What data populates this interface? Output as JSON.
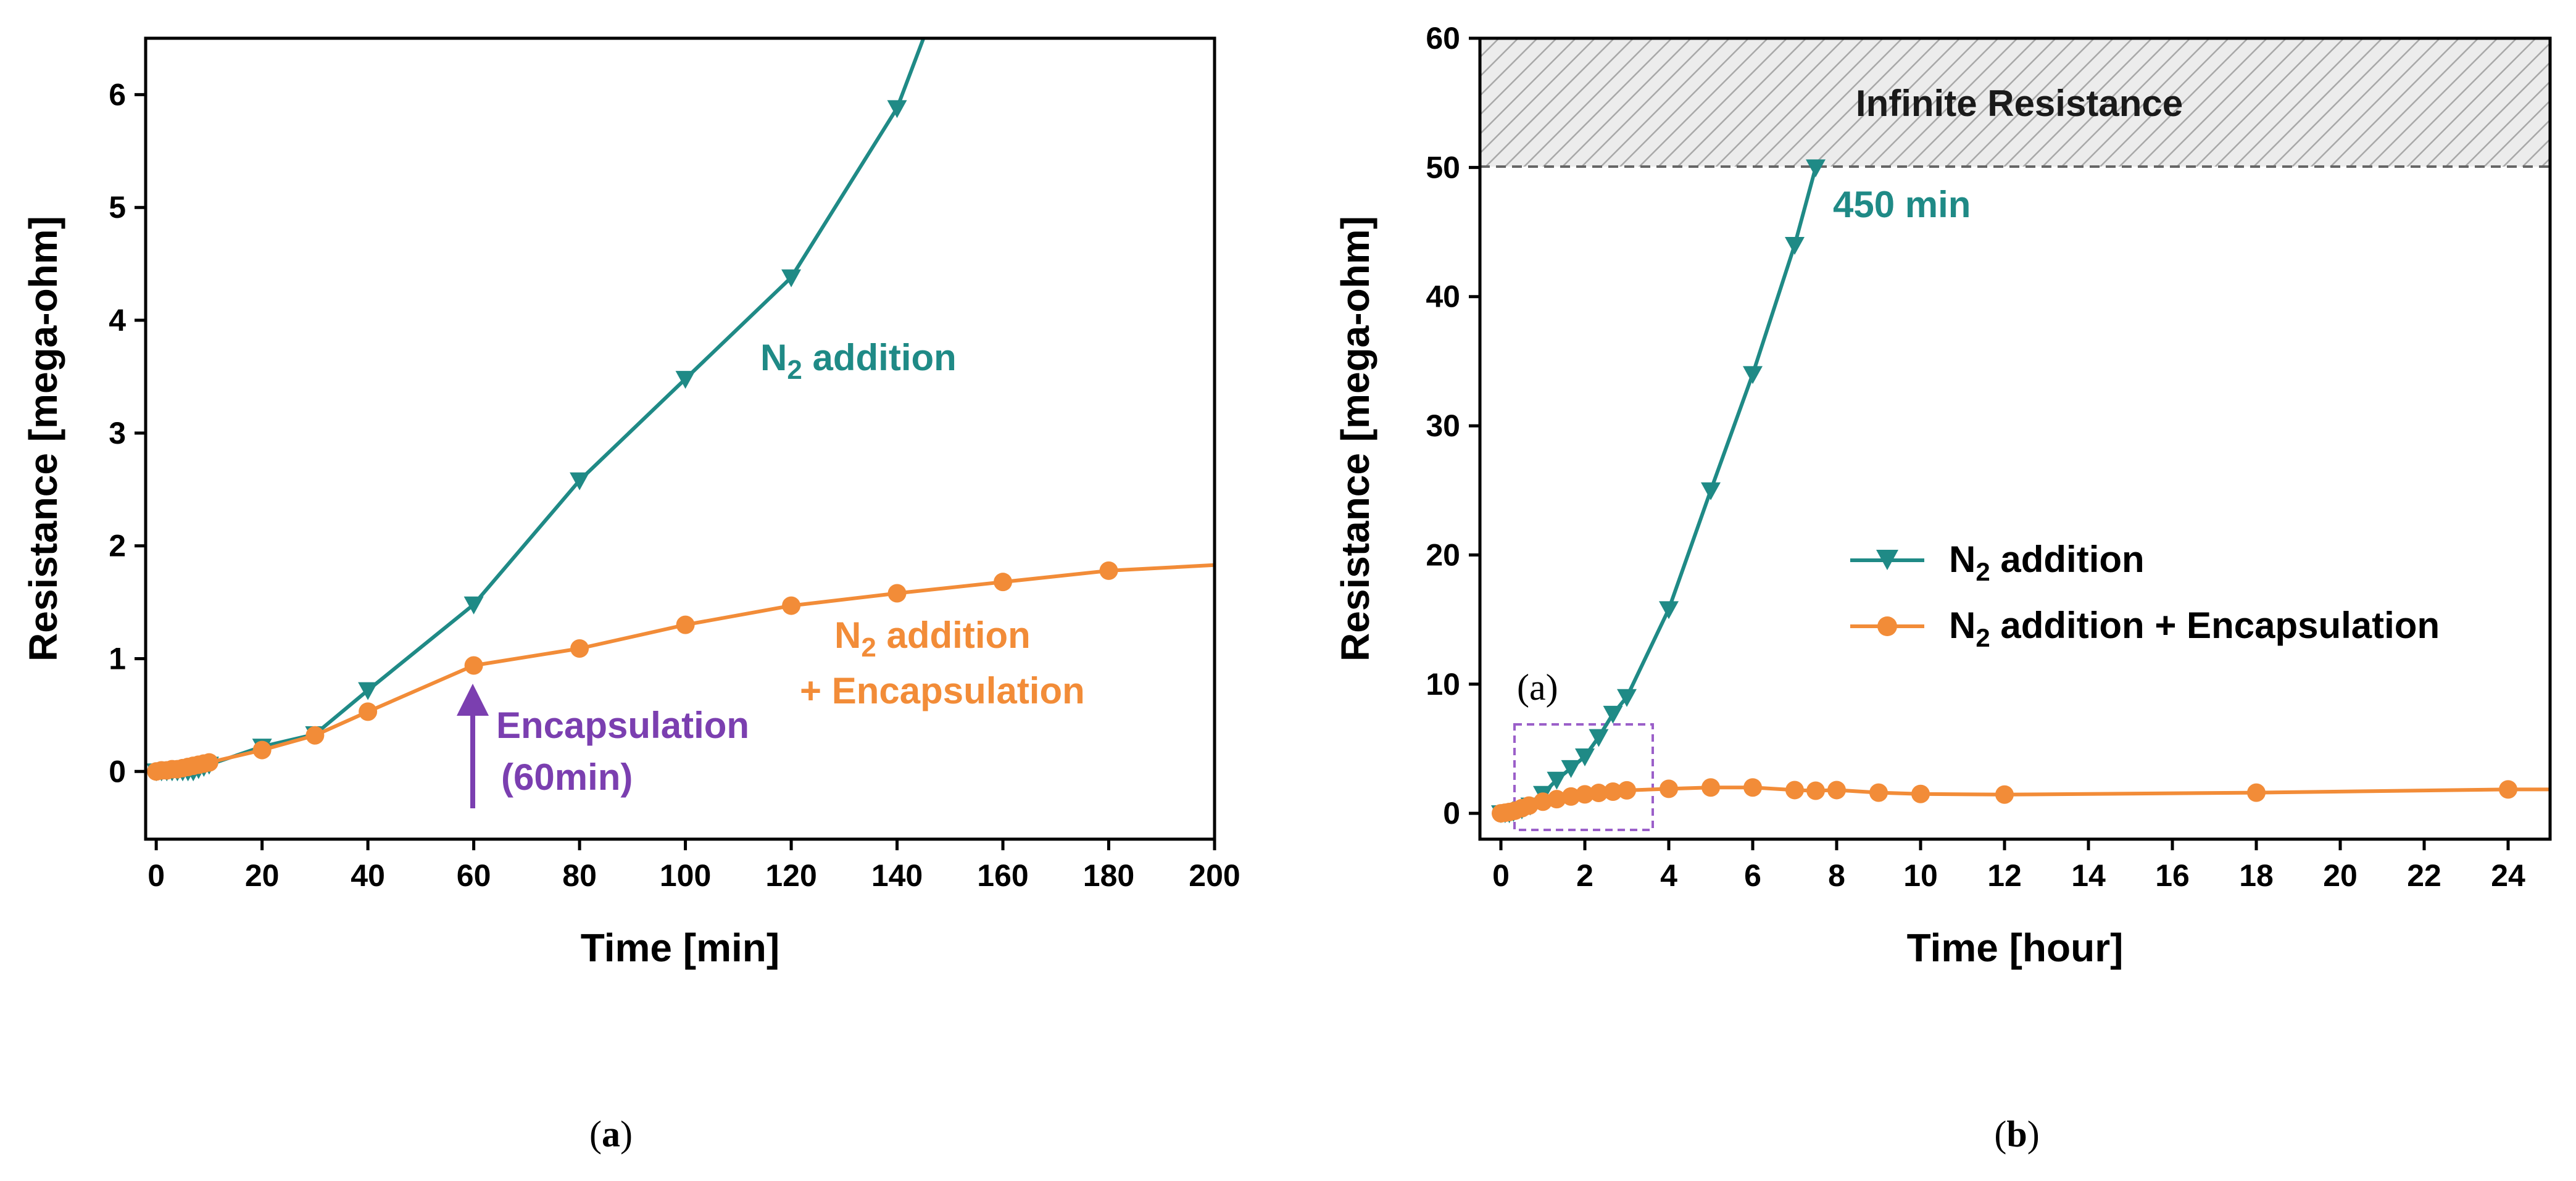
{
  "colors": {
    "teal": "#1f8a86",
    "orange": "#f28c38",
    "purple": "#7b3fb0",
    "hatch": "#9a9a9a"
  },
  "captions": {
    "a_open": "(",
    "a_letter": "a",
    "a_close": ")",
    "b_open": "(",
    "b_letter": "b",
    "b_close": ")"
  },
  "chart_data": [
    {
      "type": "line",
      "panel": "a",
      "xlabel": "Time [min]",
      "ylabel": "Resistance [mega-ohm]",
      "xlim": [
        -2,
        200
      ],
      "ylim": [
        -0.6,
        6.5
      ],
      "xticks": [
        0,
        20,
        40,
        60,
        80,
        100,
        120,
        140,
        160,
        180,
        200
      ],
      "yticks": [
        0,
        1,
        2,
        3,
        4,
        5,
        6
      ],
      "series": [
        {
          "name": "N2 addition",
          "color": "#1f8a86",
          "marker": "triangle-down",
          "x": [
            0,
            1,
            2,
            3,
            4,
            5,
            6,
            7,
            8,
            9,
            10,
            20,
            30,
            40,
            60,
            80,
            100,
            120,
            140,
            145
          ],
          "y": [
            0,
            0,
            0,
            0,
            0,
            0,
            0,
            0,
            0.02,
            0.04,
            0.06,
            0.22,
            0.33,
            0.72,
            1.48,
            2.58,
            3.48,
            4.38,
            5.88,
            6.5
          ],
          "markers_until_index": 18
        },
        {
          "name": "N2 addition + Encapsulation",
          "color": "#f28c38",
          "marker": "circle",
          "x": [
            0,
            1,
            2,
            3,
            4,
            5,
            6,
            7,
            8,
            9,
            10,
            20,
            30,
            40,
            60,
            80,
            100,
            120,
            140,
            160,
            180,
            200
          ],
          "y": [
            0,
            0.01,
            0.01,
            0.02,
            0.02,
            0.03,
            0.04,
            0.05,
            0.06,
            0.07,
            0.08,
            0.19,
            0.32,
            0.53,
            0.94,
            1.09,
            1.3,
            1.47,
            1.58,
            1.68,
            1.78,
            1.83
          ],
          "markers_until_index": 20
        }
      ],
      "annotations": {
        "n2_pre": "N",
        "n2_sub": "2",
        "n2_post": " addition",
        "enc_line1_pre": "N",
        "enc_line1_sub": "2",
        "enc_line1_post": " addition",
        "enc_line2": "+ Encapsulation",
        "arrow_line1": "Encapsulation",
        "arrow_line2": "(60min)",
        "arrow_x": 60
      }
    },
    {
      "type": "line",
      "panel": "b",
      "xlabel": "Time [hour]",
      "ylabel": "Resistance [mega-ohm]",
      "xlim": [
        -0.5,
        25
      ],
      "ylim": [
        -2,
        60
      ],
      "xticks": [
        0,
        2,
        4,
        6,
        8,
        10,
        12,
        14,
        16,
        18,
        20,
        22,
        24
      ],
      "yticks": [
        0,
        10,
        20,
        30,
        40,
        50,
        60
      ],
      "series": [
        {
          "name": "N2 addition",
          "color": "#1f8a86",
          "marker": "triangle-down",
          "x": [
            0,
            0.1,
            0.2,
            0.3,
            0.5,
            0.7,
            1,
            1.33,
            1.67,
            2,
            2.33,
            2.67,
            3,
            4,
            5,
            6,
            7,
            7.5
          ],
          "y": [
            0,
            0,
            0,
            0.1,
            0.3,
            0.6,
            1.5,
            2.6,
            3.5,
            4.4,
            5.9,
            7.7,
            9,
            15.8,
            25,
            34,
            44,
            50
          ]
        },
        {
          "name": "N2 addition + Encapsulation",
          "color": "#f28c38",
          "marker": "circle",
          "x": [
            0,
            0.1,
            0.2,
            0.33,
            0.5,
            0.67,
            1,
            1.33,
            1.67,
            2,
            2.33,
            2.67,
            3,
            4,
            5,
            6,
            7,
            7.5,
            8,
            9,
            10,
            12,
            18,
            24,
            25
          ],
          "y": [
            0,
            0.05,
            0.1,
            0.2,
            0.4,
            0.6,
            0.9,
            1.1,
            1.3,
            1.47,
            1.58,
            1.68,
            1.78,
            1.9,
            2.0,
            2.0,
            1.8,
            1.75,
            1.8,
            1.6,
            1.5,
            1.45,
            1.6,
            1.85,
            1.85
          ],
          "markers_until_index": 23
        }
      ],
      "legend": {
        "item1_pre": "N",
        "item1_sub": "2",
        "item1_post": " addition",
        "item2_pre": "N",
        "item2_sub": "2",
        "item2_post": " addition + Encapsulation",
        "placement": "center-right"
      },
      "annotations": {
        "infinite": "Infinite Resistance",
        "infinite_threshold": 50,
        "time_label": "450 min",
        "inset_label": "(a)",
        "inset_box": {
          "x": [
            -0.3,
            3.2
          ],
          "y": [
            -1.5,
            7
          ]
        }
      }
    }
  ]
}
